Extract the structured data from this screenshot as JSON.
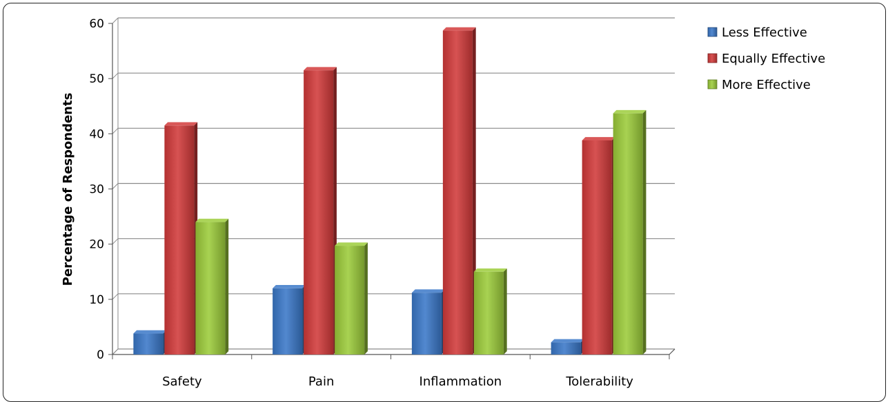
{
  "chart_data": {
    "type": "bar",
    "categories": [
      "Safety",
      "Pain",
      "Inflammation",
      "Tolerability"
    ],
    "series": [
      {
        "name": "Less Effective",
        "values": [
          3.8,
          12.0,
          11.2,
          2.2
        ]
      },
      {
        "name": "Equally Effective",
        "values": [
          41.5,
          51.5,
          58.7,
          38.8
        ]
      },
      {
        "name": "More Effective",
        "values": [
          24.0,
          19.7,
          15.0,
          43.7
        ]
      }
    ],
    "title": "",
    "xlabel": "",
    "ylabel": "Percentage of Respondents",
    "ylim": [
      0,
      60
    ],
    "yticks": [
      0,
      10,
      20,
      30,
      40,
      50,
      60
    ],
    "grid": true,
    "legend_position": "top-right",
    "colors": [
      "#3a78c8",
      "#d23a3a",
      "#9ccc3a"
    ]
  }
}
